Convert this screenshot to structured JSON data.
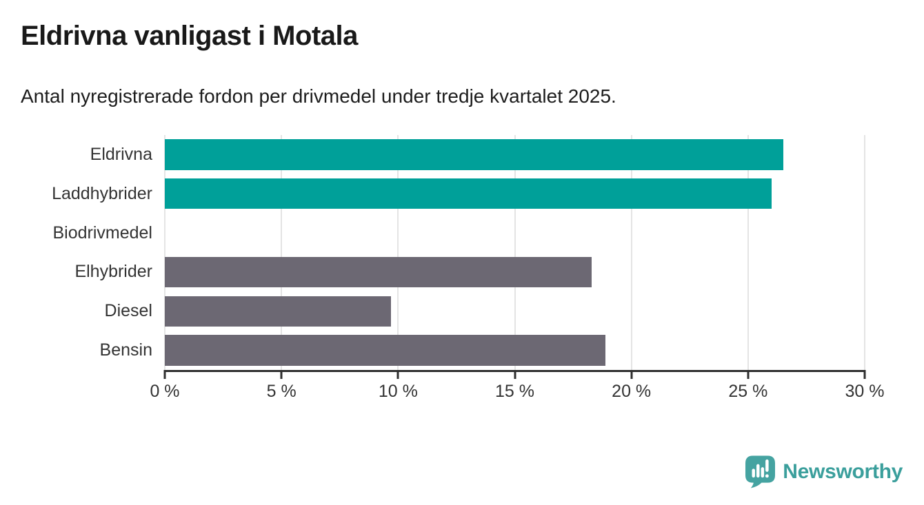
{
  "title": "Eldrivna vanligast i Motala",
  "subtitle": "Antal nyregistrerade fordon per drivmedel under tredje kvartalet 2025.",
  "colors": {
    "teal_bar": "#00a099",
    "gray_bar": "#6c6873",
    "gridline": "#e4e4e4",
    "axis": "#2e2e2e",
    "text": "#333333",
    "brand_teal": "#45a3a1"
  },
  "chart_data": {
    "type": "bar",
    "orientation": "horizontal",
    "title": "Eldrivna vanligast i Motala",
    "subtitle": "Antal nyregistrerade fordon per drivmedel under tredje kvartalet 2025.",
    "categories": [
      "Eldrivna",
      "Laddhybrider",
      "Biodrivmedel",
      "Elhybrider",
      "Diesel",
      "Bensin"
    ],
    "values": [
      26.5,
      26.0,
      0,
      18.3,
      9.7,
      18.9
    ],
    "unit": "%",
    "bar_colors": [
      "#00a099",
      "#00a099",
      "#6c6873",
      "#6c6873",
      "#6c6873",
      "#6c6873"
    ],
    "xlabel": "",
    "ylabel": "",
    "xlim": [
      0,
      30
    ],
    "x_ticks": [
      0,
      5,
      10,
      15,
      20,
      25,
      30
    ],
    "x_tick_labels": [
      "0 %",
      "5 %",
      "10 %",
      "15 %",
      "20 %",
      "25 %",
      "30 %"
    ],
    "grid": "vertical",
    "legend": "none"
  },
  "footer": {
    "brand": "Newsworthy",
    "logo_icon": "bar-chart-speech-bubble-icon"
  }
}
